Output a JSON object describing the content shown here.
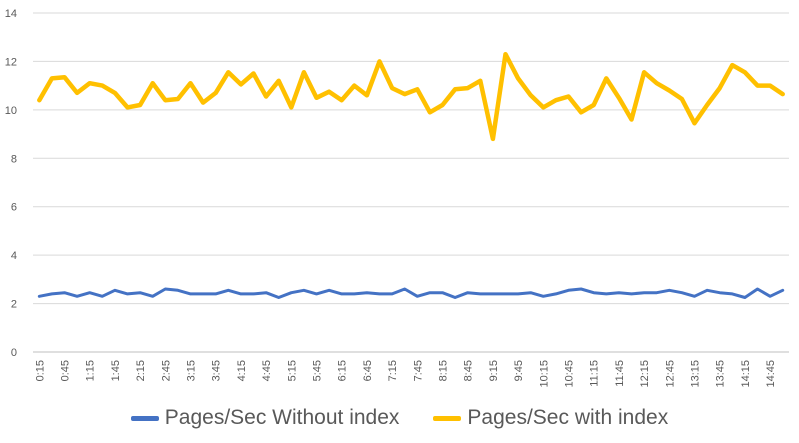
{
  "chart_data": {
    "type": "line",
    "title": "",
    "xlabel": "",
    "ylabel": "",
    "ylim": [
      0,
      14
    ],
    "yticks": [
      0,
      2,
      4,
      6,
      8,
      10,
      12,
      14
    ],
    "grid": "horizontal",
    "legend_position": "bottom",
    "x": [
      "0:15",
      "0:30",
      "0:45",
      "1:00",
      "1:15",
      "1:30",
      "1:45",
      "2:00",
      "2:15",
      "2:30",
      "2:45",
      "3:00",
      "3:15",
      "3:30",
      "3:45",
      "4:00",
      "4:15",
      "4:30",
      "4:45",
      "5:00",
      "5:15",
      "5:30",
      "5:45",
      "6:00",
      "6:15",
      "6:30",
      "6:45",
      "7:00",
      "7:15",
      "7:30",
      "7:45",
      "8:00",
      "8:15",
      "8:30",
      "8:45",
      "9:00",
      "9:15",
      "9:30",
      "9:45",
      "10:00",
      "10:15",
      "10:30",
      "10:45",
      "11:00",
      "11:15",
      "11:30",
      "11:45",
      "12:00",
      "12:15",
      "12:30",
      "12:45",
      "13:00",
      "13:15",
      "13:30",
      "13:45",
      "14:00",
      "14:15",
      "14:30",
      "14:45",
      "15:00"
    ],
    "x_tick_labels_shown": [
      "0:15",
      "0:45",
      "1:15",
      "1:45",
      "2:15",
      "2:45",
      "3:15",
      "3:45",
      "4:15",
      "4:45",
      "5:15",
      "5:45",
      "6:15",
      "6:45",
      "7:15",
      "7:45",
      "8:15",
      "8:45",
      "9:15",
      "9:45",
      "10:15",
      "10:45",
      "11:15",
      "11:45",
      "12:15",
      "12:45",
      "13:15",
      "13:45",
      "14:15",
      "14:45"
    ],
    "series": [
      {
        "name": "Pages/Sec Without index",
        "color": "#4472C4",
        "values": [
          2.3,
          2.4,
          2.45,
          2.3,
          2.45,
          2.3,
          2.55,
          2.4,
          2.45,
          2.3,
          2.6,
          2.55,
          2.4,
          2.4,
          2.4,
          2.55,
          2.4,
          2.4,
          2.45,
          2.25,
          2.45,
          2.55,
          2.4,
          2.55,
          2.4,
          2.4,
          2.45,
          2.4,
          2.4,
          2.6,
          2.3,
          2.45,
          2.45,
          2.25,
          2.45,
          2.4,
          2.4,
          2.4,
          2.4,
          2.45,
          2.3,
          2.4,
          2.55,
          2.6,
          2.45,
          2.4,
          2.45,
          2.4,
          2.45,
          2.45,
          2.55,
          2.45,
          2.3,
          2.55,
          2.45,
          2.4,
          2.25,
          2.6,
          2.3,
          2.55
        ]
      },
      {
        "name": "Pages/Sec with index",
        "color": "#FFC000",
        "values": [
          10.4,
          11.3,
          11.35,
          10.7,
          11.1,
          11.0,
          10.7,
          10.1,
          10.2,
          11.1,
          10.4,
          10.45,
          11.1,
          10.3,
          10.7,
          11.55,
          11.05,
          11.5,
          10.55,
          11.2,
          10.1,
          11.55,
          10.5,
          10.75,
          10.4,
          11.0,
          10.6,
          12.0,
          10.9,
          10.65,
          10.85,
          9.9,
          10.2,
          10.85,
          10.9,
          11.2,
          8.8,
          12.3,
          11.3,
          10.6,
          10.1,
          10.4,
          10.55,
          9.9,
          10.2,
          11.3,
          10.5,
          9.6,
          11.55,
          11.1,
          10.8,
          10.45,
          9.45,
          10.2,
          10.9,
          11.85,
          11.55,
          11.0,
          11.0,
          10.65
        ]
      }
    ]
  }
}
